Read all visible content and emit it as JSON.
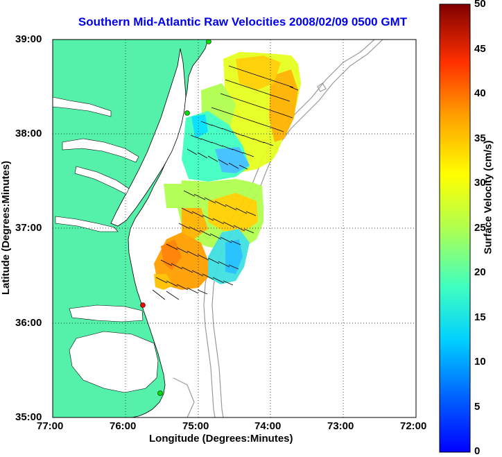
{
  "title": "Southern Mid-Atlantic Raw Velocities 2008/02/09 0500 GMT",
  "x_axis": {
    "label": "Longitude (Degrees:Minutes)",
    "ticks": [
      "77:00",
      "76:00",
      "75:00",
      "74:00",
      "73:00",
      "72:00"
    ]
  },
  "y_axis": {
    "label": "Latitude (Degrees:Minutes)",
    "ticks": [
      "39:00",
      "38:00",
      "37:00",
      "36:00",
      "35:00"
    ]
  },
  "colorbar": {
    "label": "Surface Velocity (cm/s)",
    "ticks": [
      "50",
      "45",
      "40",
      "35",
      "30",
      "25",
      "20",
      "15",
      "10",
      "5",
      "0"
    ],
    "range": [
      0,
      50
    ],
    "colormap": "jet"
  },
  "map_extent": {
    "lon_min": -77,
    "lon_max": -72,
    "lat_min": 35,
    "lat_max": 39
  },
  "colors": {
    "land": "#55f0aa",
    "ocean": "#ffffff",
    "title": "#0000ee",
    "bathymetry": "#999999",
    "station_green": "#00dd00",
    "station_red": "#ff0000"
  },
  "chart_data": {
    "type": "heatmap",
    "title": "Southern Mid-Atlantic Raw Velocities 2008/02/09 0500 GMT",
    "xlabel": "Longitude (Degrees:Minutes)",
    "ylabel": "Latitude (Degrees:Minutes)",
    "xlim": [
      -77,
      -72
    ],
    "ylim": [
      35,
      39
    ],
    "colorbar_label": "Surface Velocity (cm/s)",
    "clim": [
      0,
      50
    ],
    "grid": true,
    "stations": [
      {
        "lon": -75.03,
        "lat": 39.0,
        "color": "green"
      },
      {
        "lon": -75.15,
        "lat": 38.23,
        "color": "green"
      },
      {
        "lon": -75.7,
        "lat": 36.18,
        "color": "red"
      },
      {
        "lon": -75.47,
        "lat": 35.27,
        "color": "green"
      }
    ]
  }
}
